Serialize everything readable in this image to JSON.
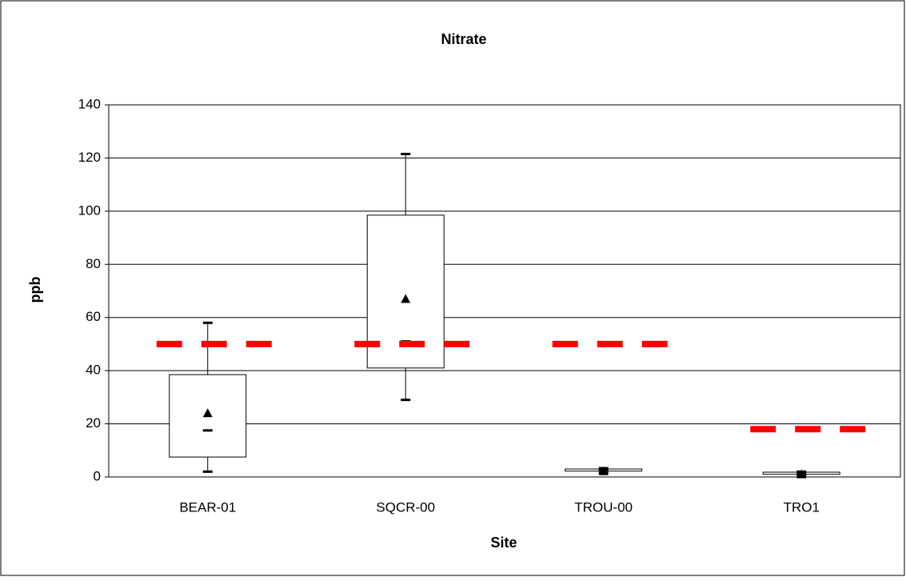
{
  "chart_data": {
    "type": "box",
    "title": "Nitrate",
    "x_label": "Site",
    "y_label": "ppb",
    "categories": [
      "BEAR-01",
      "SQCR-00",
      "TROU-00",
      "TRO1"
    ],
    "min": [
      2,
      29,
      1.5,
      0.6
    ],
    "q1": [
      7.5,
      41,
      2.2,
      1
    ],
    "median": [
      17.5,
      51,
      2.5,
      1.2
    ],
    "q3": [
      38.5,
      98.5,
      3,
      1.8
    ],
    "max": [
      58,
      121.5,
      3.3,
      2
    ],
    "mean": [
      24,
      67,
      2.2,
      1
    ],
    "reference_values": [
      50,
      50,
      50,
      18
    ],
    "reference_color": "#ff0000",
    "box_color": "#ffffff",
    "ylim": [
      0,
      140
    ],
    "yticks": [
      0,
      20,
      40,
      60,
      80,
      100,
      120,
      140
    ],
    "grid": true
  }
}
